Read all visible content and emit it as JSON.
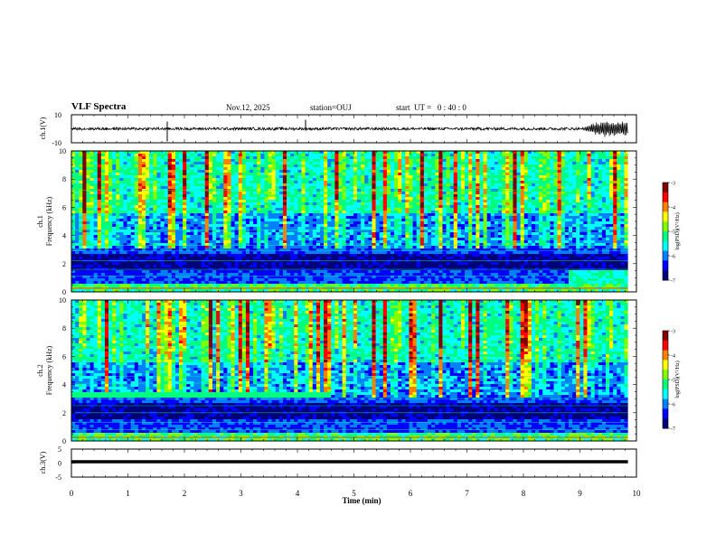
{
  "header": {
    "title": "VLF Spectra",
    "date": "Nov.12, 2025",
    "station": "station=OUJ",
    "start": "start  UT =   0 : 40 : 0"
  },
  "colors": {
    "colormap": [
      "#00007a",
      "#0000ff",
      "#0080ff",
      "#00ffff",
      "#00ff80",
      "#80ff00",
      "#ffff00",
      "#ff8000",
      "#ff0000",
      "#800000"
    ]
  },
  "chart_data": [
    {
      "type": "line",
      "id": "ch1-waveform",
      "ylabel": "ch.1(V)",
      "ylim": [
        -10,
        10
      ],
      "yticks": [
        "10",
        "-10"
      ],
      "xlim": [
        0,
        10
      ],
      "series": [
        {
          "name": "ch.1",
          "description": "noisy waveform around 0 V with larger oscillation after 9 min",
          "amplitude_v": 2,
          "burst_start_min": 9.0,
          "burst_amplitude_v": 6
        }
      ]
    },
    {
      "type": "heatmap",
      "id": "ch1-spectrogram",
      "ylabel": "ch.1\nFrequency (kHz)",
      "ylabel_lines": [
        "ch.1",
        "Frequency (kHz)"
      ],
      "ylim": [
        0,
        10
      ],
      "yticks": [
        "0",
        "2",
        "4",
        "6",
        "8",
        "10"
      ],
      "xlim": [
        0,
        9.85
      ],
      "colorbar": {
        "label": "log(PSD)(V²/Hz)",
        "range": [
          -7,
          -3
        ],
        "ticks": [
          "-3",
          "-4",
          "-5",
          "-6",
          "-7"
        ]
      },
      "features": {
        "quiet_band_khz": [
          1.5,
          2.5
        ],
        "broadband_above_khz": 3,
        "low_band_khz": [
          0,
          0.6
        ]
      }
    },
    {
      "type": "heatmap",
      "id": "ch2-spectrogram",
      "ylabel": "ch.2\nFrequency (kHz)",
      "ylabel_lines": [
        "ch.2",
        "Frequency (kHz)"
      ],
      "ylim": [
        0,
        10
      ],
      "yticks": [
        "0",
        "2",
        "4",
        "6",
        "8",
        "10"
      ],
      "xlim": [
        0,
        9.85
      ],
      "colorbar": {
        "label": "log(PSD)(V²/Hz)",
        "range": [
          -7,
          -3
        ],
        "ticks": [
          "-3",
          "-4",
          "-5",
          "-6",
          "-7"
        ]
      },
      "features": {
        "hum_band_khz": [
          3.1,
          3.5
        ],
        "hum_band_end_min": 4.6
      }
    },
    {
      "type": "line",
      "id": "ch3-waveform",
      "ylabel": "ch.3(V)",
      "ylim": [
        -5,
        5
      ],
      "yticks": [
        "5",
        "0",
        "-5"
      ],
      "xlim": [
        0,
        10
      ],
      "series": [
        {
          "name": "ch.3",
          "description": "constant level",
          "value_v": 0
        }
      ]
    }
  ],
  "xaxis": {
    "label": "Time (min)",
    "ticks": [
      "0",
      "1",
      "2",
      "3",
      "4",
      "5",
      "6",
      "7",
      "8",
      "9",
      "10"
    ]
  }
}
